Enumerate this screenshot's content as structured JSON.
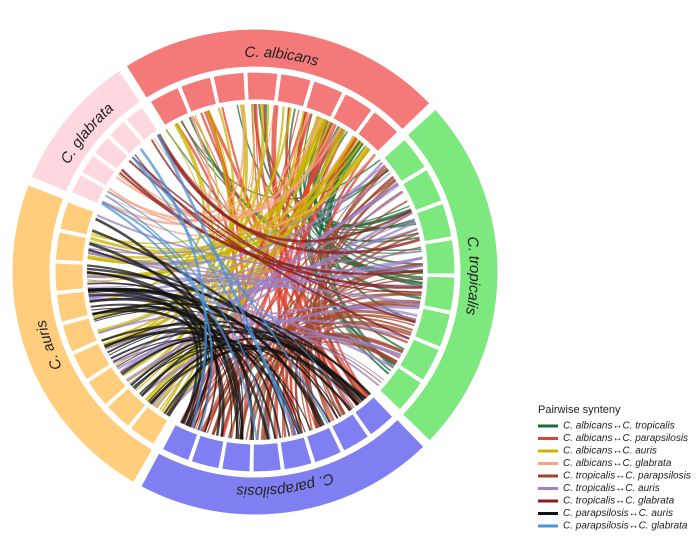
{
  "chart_data": {
    "type": "chord",
    "groups": [
      {
        "name": "C. albicans",
        "color": "#f47a7a"
      },
      {
        "name": "C. tropicalis",
        "color": "#7de87d"
      },
      {
        "name": "C. parapsilosis",
        "color": "#7f7ff2"
      },
      {
        "name": "C. auris",
        "color": "#ffcd7c"
      },
      {
        "name": "C. glabrata",
        "color": "#ffd7de"
      }
    ],
    "legend_title": "Pairwise synteny",
    "series": [
      {
        "name": "C. albicans↔C. tropicalis",
        "color": "#1e6b3c"
      },
      {
        "name": "C. albicans↔C. parapsilosis",
        "color": "#e2412f"
      },
      {
        "name": "C. albicans↔C. auris",
        "color": "#c9b400"
      },
      {
        "name": "C. albicans↔C. glabrata",
        "color": "#f4a385"
      },
      {
        "name": "C. tropicalis↔C. parapsilosis",
        "color": "#a0452b"
      },
      {
        "name": "C. tropicalis↔C. auris",
        "color": "#9b82c4"
      },
      {
        "name": "C. tropicalis↔C. glabrata",
        "color": "#8a1c1c"
      },
      {
        "name": "C. parapsilosis↔C. auris",
        "color": "#111111"
      },
      {
        "name": "C. parapsilosis↔C. glabrata",
        "color": "#4a92da"
      }
    ]
  }
}
